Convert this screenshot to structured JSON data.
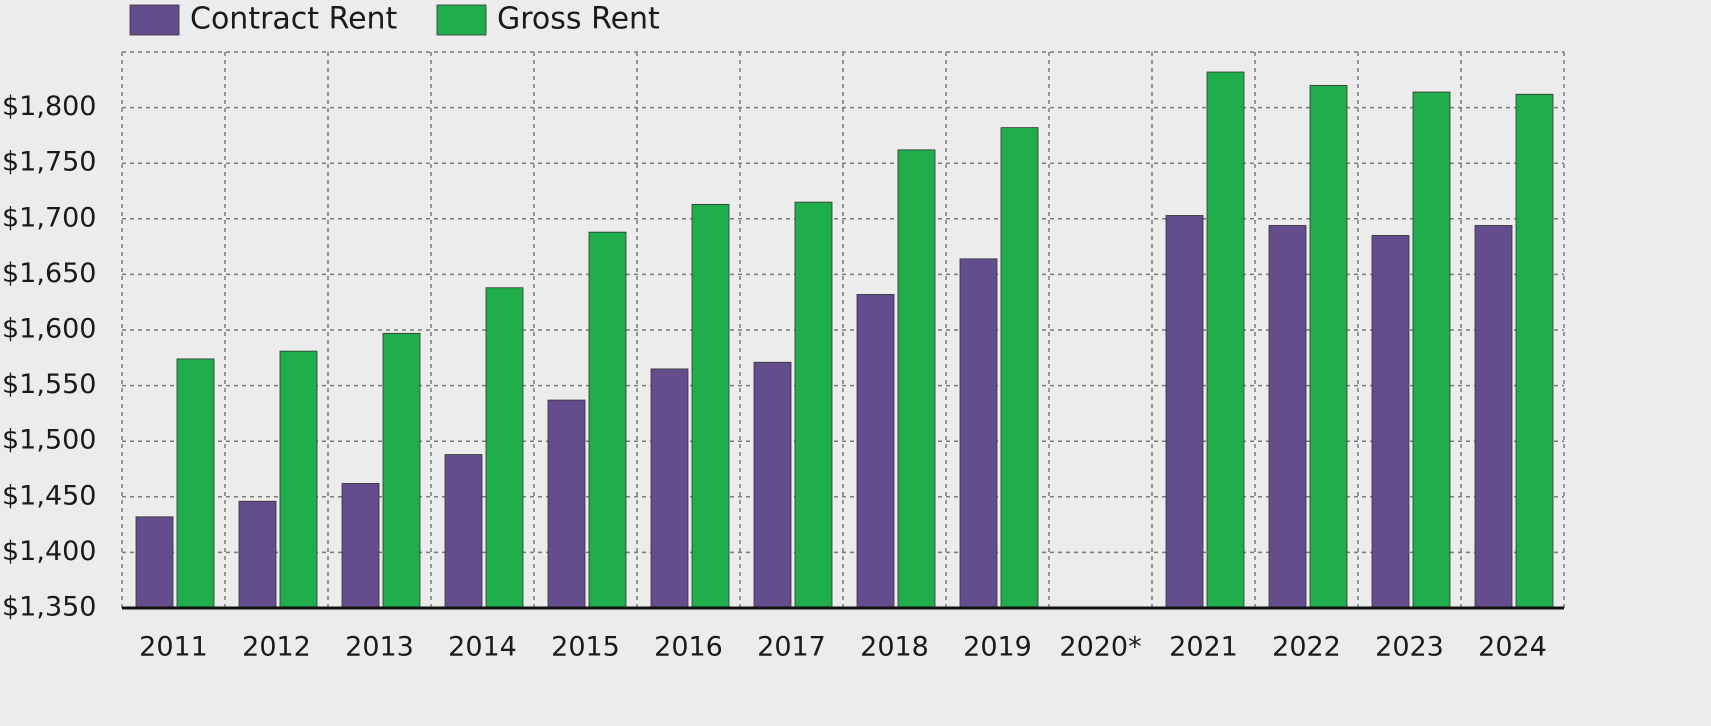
{
  "chart_data": {
    "type": "bar",
    "categories": [
      "2011",
      "2012",
      "2013",
      "2014",
      "2015",
      "2016",
      "2017",
      "2018",
      "2019",
      "2020*",
      "2021",
      "2022",
      "2023",
      "2024"
    ],
    "series": [
      {
        "name": "Contract Rent",
        "color": "#644d8d",
        "values": [
          1432,
          1446,
          1462,
          1488,
          1537,
          1565,
          1571,
          1632,
          1664,
          null,
          1703,
          1694,
          1685,
          1694
        ]
      },
      {
        "name": "Gross Rent",
        "color": "#1fae4b",
        "values": [
          1574,
          1581,
          1597,
          1638,
          1688,
          1713,
          1715,
          1762,
          1782,
          null,
          1832,
          1820,
          1814,
          1812
        ]
      }
    ],
    "ylim": [
      1350,
      1850
    ],
    "yticks": [
      {
        "value": 1350,
        "label": "$1,350"
      },
      {
        "value": 1400,
        "label": "$1,400"
      },
      {
        "value": 1450,
        "label": "$1,450"
      },
      {
        "value": 1500,
        "label": "$1,500"
      },
      {
        "value": 1550,
        "label": "$1,550"
      },
      {
        "value": 1600,
        "label": "$1,600"
      },
      {
        "value": 1650,
        "label": "$1,650"
      },
      {
        "value": 1700,
        "label": "$1,700"
      },
      {
        "value": 1750,
        "label": "$1,750"
      },
      {
        "value": 1800,
        "label": "$1,800"
      }
    ],
    "grid": true,
    "legend": "top-left"
  }
}
